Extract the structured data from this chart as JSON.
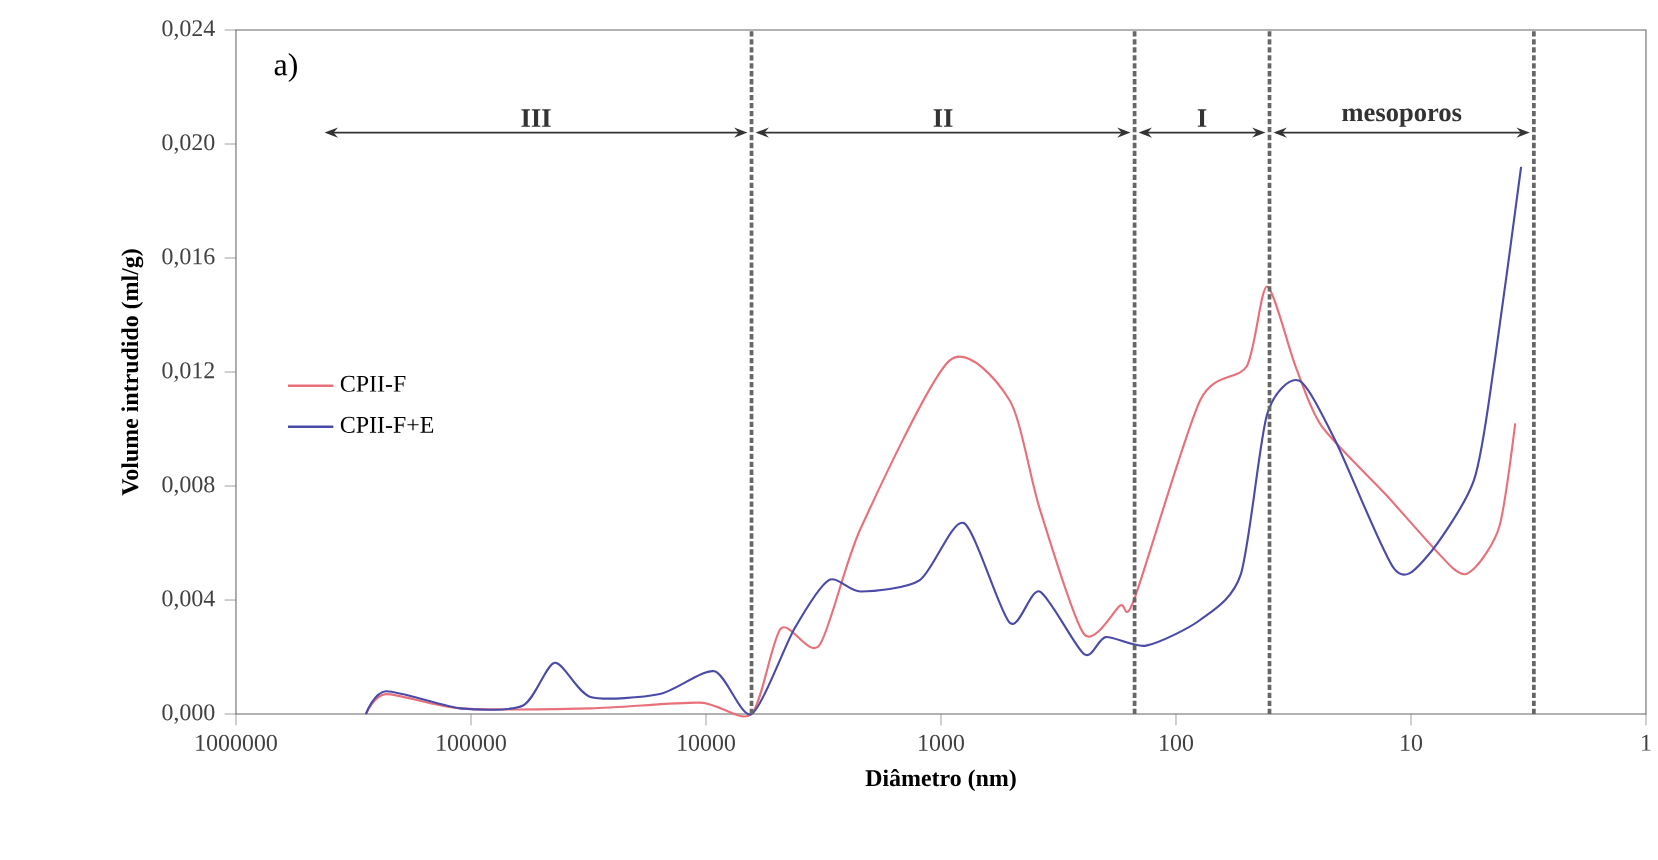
{
  "chart_data": {
    "type": "line",
    "xlabel": "Diâmetro (nm)",
    "ylabel": "Volume intrudido (ml/g)",
    "log": "x",
    "xlim": [
      1000000,
      1
    ],
    "ylim": [
      0,
      0.024
    ],
    "xticks": [
      1000000,
      100000,
      10000,
      1000,
      100,
      10,
      1
    ],
    "yticks": [
      {
        "value": 0,
        "label": "0,000"
      },
      {
        "value": 0.004,
        "label": "0,004"
      },
      {
        "value": 0.008,
        "label": "0,008"
      },
      {
        "value": 0.012,
        "label": "0,012"
      },
      {
        "value": 0.016,
        "label": "0,016"
      },
      {
        "value": 0.02,
        "label": "0,020"
      },
      {
        "value": 0.024,
        "label": "0,024"
      }
    ],
    "grid": false,
    "legend": "left",
    "marker": "none",
    "line_style": "solid",
    "series": [
      {
        "name": "CPII-F",
        "color": "#e8707a",
        "x": [
          280000,
          230000,
          111000,
          31000,
          10600,
          6400,
          4800,
          3300,
          2200,
          920,
          510,
          380,
          246,
          173,
          151,
          79,
          50,
          41,
          31,
          24,
          12.8,
          6.6,
          5.4,
          4.2,
          3.6
        ],
        "values": [
          0,
          0.0007,
          0.0002,
          0.0002,
          0.0004,
          0,
          0.003,
          0.0024,
          0.0065,
          0.0124,
          0.011,
          0.0072,
          0.0028,
          0.0038,
          0.004,
          0.011,
          0.0122,
          0.015,
          0.0122,
          0.0101,
          0.0077,
          0.0051,
          0.0051,
          0.0066,
          0.0102
        ]
      },
      {
        "name": "CPII-F+E",
        "color": "#4a4aa8",
        "x": [
          280000,
          230000,
          111000,
          60000,
          44000,
          31000,
          15700,
          9200,
          6400,
          4200,
          3000,
          2200,
          1230,
          800,
          510,
          380,
          246,
          199,
          134,
          79,
          53,
          41,
          30,
          21,
          11.8,
          8.6,
          5.4,
          4.4,
          3.4
        ],
        "values": [
          0,
          0.0008,
          0.0002,
          0.0003,
          0.0018,
          0.0006,
          0.0007,
          0.0015,
          0,
          0.003,
          0.0047,
          0.0043,
          0.0047,
          0.0067,
          0.0032,
          0.0043,
          0.0021,
          0.0027,
          0.0024,
          0.0033,
          0.0049,
          0.0105,
          0.0117,
          0.0096,
          0.0051,
          0.0055,
          0.0082,
          0.0124,
          0.0192
        ]
      }
    ],
    "ref_lines": [
      {
        "axis": "x",
        "value": 6400,
        "line_style": "dashed",
        "color": "#666666"
      },
      {
        "axis": "x",
        "value": 150,
        "line_style": "dashed",
        "color": "#666666"
      },
      {
        "axis": "x",
        "value": 40,
        "line_style": "dashed",
        "color": "#666666"
      },
      {
        "axis": "x",
        "value": 3,
        "line_style": "dashed",
        "color": "#666666"
      }
    ],
    "annotations": [
      "a)",
      "III",
      "II",
      "I",
      "mesoporos"
    ]
  }
}
